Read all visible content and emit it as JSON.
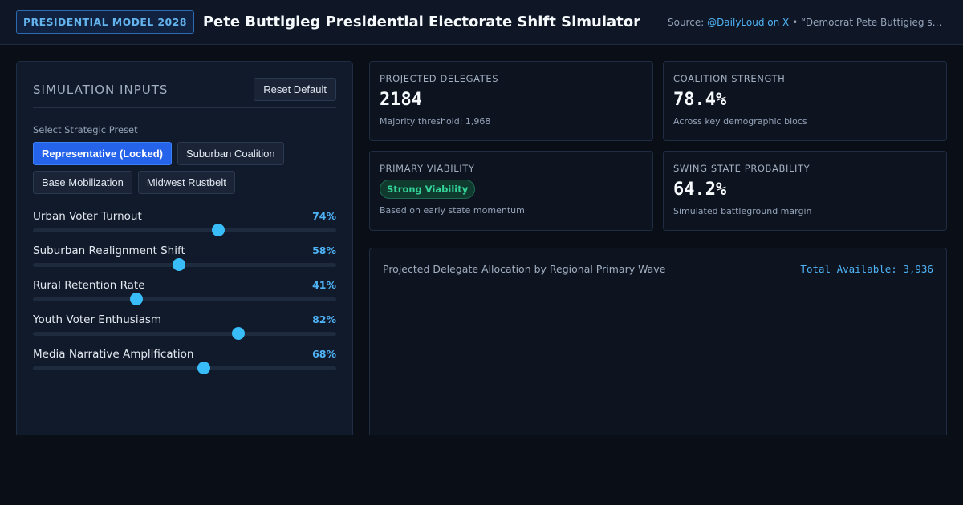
{
  "header": {
    "badge": "PRESIDENTIAL MODEL 2028",
    "title": "Pete Buttigieg Presidential Electorate Shift Simulator",
    "source_prefix": "Source: ",
    "source_link": "@DailyLoud on X",
    "source_text": " • “Democrat Pete Buttigieg says America is finally ready for a gay president.”"
  },
  "inputs": {
    "title": "SIMULATION INPUTS",
    "reset_label": "Reset Default",
    "preset_label": "Select Strategic Preset",
    "presets": [
      {
        "label": "Representative (Locked)",
        "active": true
      },
      {
        "label": "Suburban Coalition",
        "active": false
      },
      {
        "label": "Base Mobilization",
        "active": false
      },
      {
        "label": "Midwest Rustbelt",
        "active": false
      }
    ],
    "sliders": [
      {
        "label": "Urban Voter Turnout",
        "value": 74,
        "display": "74%"
      },
      {
        "label": "Suburban Realignment Shift",
        "value": 58,
        "display": "58%"
      },
      {
        "label": "Rural Retention Rate",
        "value": 41,
        "display": "41%"
      },
      {
        "label": "Youth Voter Enthusiasm",
        "value": 82,
        "display": "82%"
      },
      {
        "label": "Media Narrative Amplification",
        "value": 68,
        "display": "68%"
      }
    ]
  },
  "stats": {
    "delegates": {
      "label": "PROJECTED DELEGATES",
      "value": "2184",
      "sub": "Majority threshold: 1,968"
    },
    "coalition": {
      "label": "COALITION STRENGTH",
      "value": "78.4%",
      "sub": "Across key demographic blocs"
    },
    "viability": {
      "label": "PRIMARY VIABILITY",
      "pill": "Strong Viability",
      "sub": "Based on early state momentum"
    },
    "swing": {
      "label": "SWING STATE PROBABILITY",
      "value": "64.2%",
      "sub": "Simulated battleground margin"
    }
  },
  "chart": {
    "title": "Projected Delegate Allocation by Regional Primary Wave",
    "total": "Total Available: 3,936"
  },
  "colors": {
    "accent": "#38bdf8",
    "primary_button": "#2563eb",
    "success": "#34d399"
  }
}
